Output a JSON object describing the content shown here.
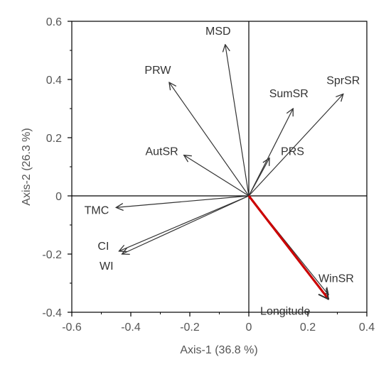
{
  "chart_data": {
    "type": "scatter",
    "subtype": "biplot-vectors",
    "xlabel": "Axis-1 (36.8 %)",
    "ylabel": "Axis-2 (26.3 %)",
    "xlim": [
      -0.6,
      0.4
    ],
    "ylim": [
      -0.4,
      0.6
    ],
    "xticks": [
      {
        "value": -0.6,
        "label": "-0.6"
      },
      {
        "value": -0.4,
        "label": "-0.4"
      },
      {
        "value": -0.2,
        "label": "-0.2"
      },
      {
        "value": 0,
        "label": "0"
      },
      {
        "value": 0.2,
        "label": "0.2"
      },
      {
        "value": 0.4,
        "label": "0.4"
      }
    ],
    "yticks": [
      {
        "value": -0.4,
        "label": "-0.4"
      },
      {
        "value": -0.2,
        "label": "-0.2"
      },
      {
        "value": 0,
        "label": "0"
      },
      {
        "value": 0.2,
        "label": "0.2"
      },
      {
        "value": 0.4,
        "label": "0.4"
      },
      {
        "value": 0.6,
        "label": "0.6"
      }
    ],
    "grid": false,
    "reference_lines": {
      "x": 0,
      "y": 0
    },
    "vectors": [
      {
        "name": "MSD",
        "x": -0.08,
        "y": 0.52,
        "color": "#333333"
      },
      {
        "name": "PRW",
        "x": -0.27,
        "y": 0.39,
        "color": "#333333"
      },
      {
        "name": "SumSR",
        "x": 0.15,
        "y": 0.3,
        "color": "#333333"
      },
      {
        "name": "SprSR",
        "x": 0.32,
        "y": 0.35,
        "color": "#333333"
      },
      {
        "name": "AutSR",
        "x": -0.22,
        "y": 0.14,
        "color": "#333333"
      },
      {
        "name": "PRS",
        "x": 0.07,
        "y": 0.13,
        "color": "#333333"
      },
      {
        "name": "TMC",
        "x": -0.45,
        "y": -0.04,
        "color": "#333333"
      },
      {
        "name": "CI",
        "x": -0.44,
        "y": -0.19,
        "color": "#333333"
      },
      {
        "name": "WI",
        "x": -0.43,
        "y": -0.2,
        "color": "#333333"
      },
      {
        "name": "WinSR",
        "x": 0.27,
        "y": -0.34,
        "color": "#333333"
      },
      {
        "name": "Longitude",
        "x": 0.27,
        "y": -0.355,
        "color": "#cc0000"
      }
    ]
  }
}
